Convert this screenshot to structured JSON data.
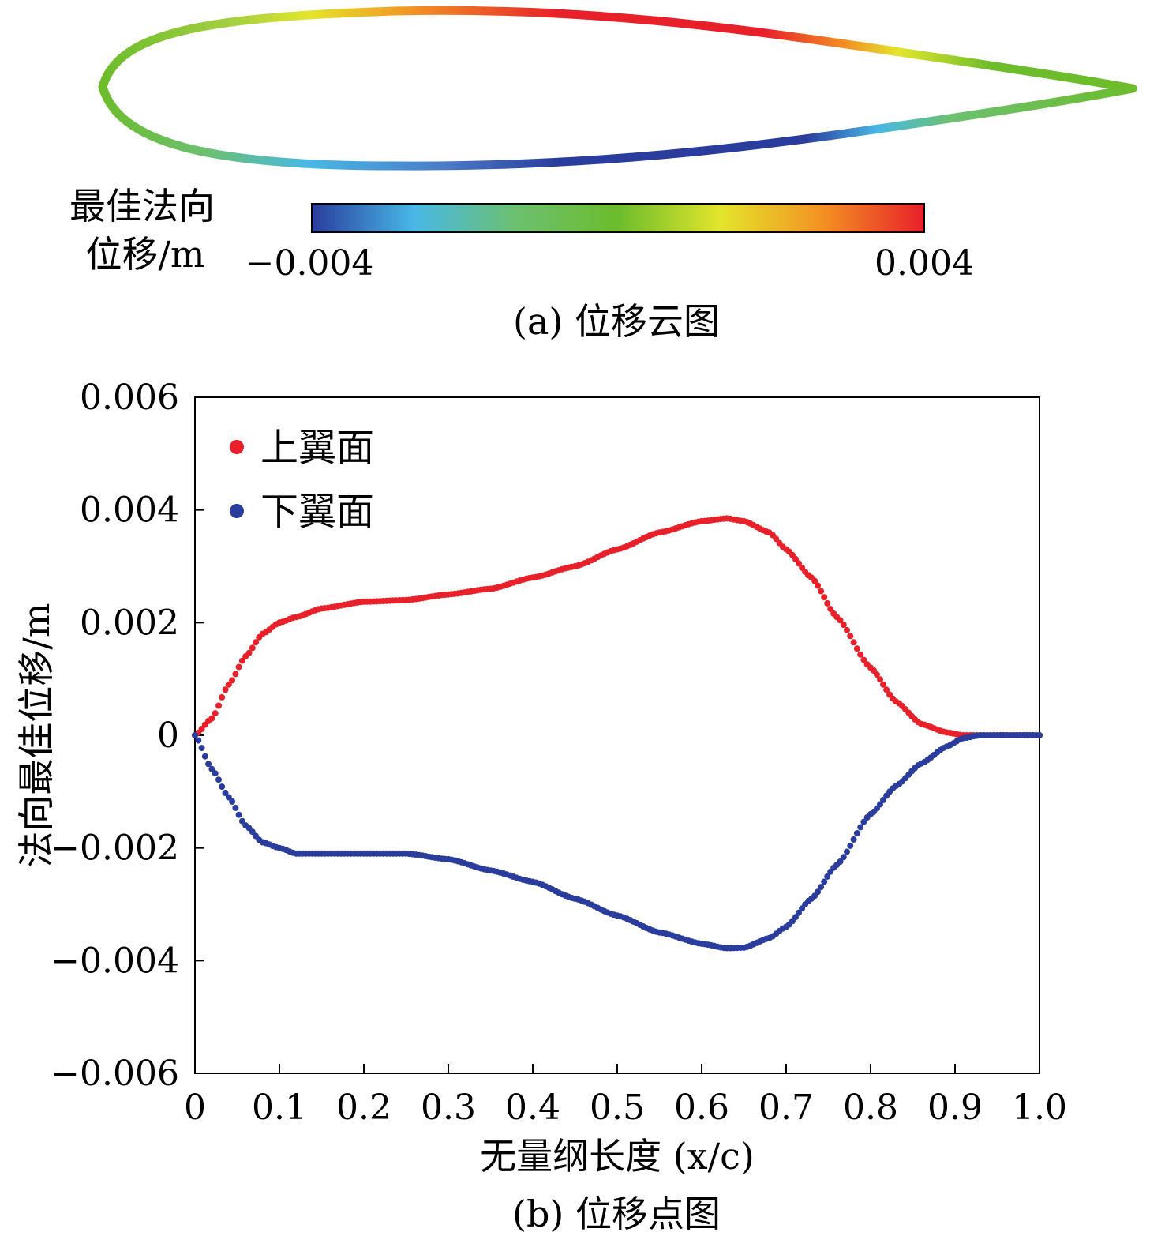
{
  "panel_a": {
    "colorbar_label_line1": "最佳法向",
    "colorbar_label_line2": "位移/m",
    "colorbar_min": "−0.004",
    "colorbar_max": "0.004",
    "colorbar_range": [
      -0.004,
      0.004
    ],
    "colormap": [
      "#2b3d9c",
      "#48b8e6",
      "#6cc070",
      "#6cbc2c",
      "#e3e52c",
      "#f39222",
      "#e8202a"
    ],
    "caption": "(a) 位移云图"
  },
  "panel_b": {
    "caption": "(b) 位移点图"
  },
  "chart_data": {
    "type": "scatter",
    "title": "",
    "xlabel": "无量纲长度 (x/c)",
    "ylabel": "法向最佳位移/m",
    "xlim": [
      0,
      1.0
    ],
    "ylim": [
      -0.006,
      0.006
    ],
    "xticks": [
      0,
      0.1,
      0.2,
      0.3,
      0.4,
      0.5,
      0.6,
      0.7,
      0.8,
      0.9,
      1.0
    ],
    "xtick_labels": [
      "0",
      "0.1",
      "0.2",
      "0.3",
      "0.4",
      "0.5",
      "0.6",
      "0.7",
      "0.8",
      "0.9",
      "1.0"
    ],
    "yticks": [
      -0.006,
      -0.004,
      -0.002,
      0,
      0.002,
      0.004,
      0.006
    ],
    "ytick_labels": [
      "−0.006",
      "−0.004",
      "−0.002",
      "0",
      "0.002",
      "0.004",
      "0.006"
    ],
    "grid": false,
    "legend_position": "top-left",
    "series": [
      {
        "name": "上翼面",
        "color": "#e8202a",
        "x": [
          0,
          0.02,
          0.04,
          0.06,
          0.08,
          0.1,
          0.12,
          0.15,
          0.2,
          0.25,
          0.3,
          0.35,
          0.4,
          0.45,
          0.5,
          0.55,
          0.6,
          0.63,
          0.65,
          0.68,
          0.7,
          0.73,
          0.76,
          0.8,
          0.83,
          0.86,
          0.89,
          0.91,
          0.93,
          0.95,
          1.0
        ],
        "y": [
          0,
          0.0003,
          0.0009,
          0.0014,
          0.0018,
          0.002,
          0.0021,
          0.00225,
          0.00237,
          0.0024,
          0.0025,
          0.0026,
          0.0028,
          0.003,
          0.0033,
          0.0036,
          0.0038,
          0.00385,
          0.0038,
          0.0036,
          0.0033,
          0.0028,
          0.0021,
          0.0012,
          0.0006,
          0.0002,
          5e-05,
          0,
          0,
          0,
          0
        ]
      },
      {
        "name": "下翼面",
        "color": "#2b3d9c",
        "x": [
          0,
          0.02,
          0.04,
          0.06,
          0.08,
          0.1,
          0.12,
          0.15,
          0.2,
          0.25,
          0.3,
          0.35,
          0.4,
          0.45,
          0.5,
          0.55,
          0.6,
          0.63,
          0.65,
          0.68,
          0.7,
          0.73,
          0.76,
          0.8,
          0.83,
          0.86,
          0.89,
          0.91,
          0.93,
          0.95,
          1.0
        ],
        "y": [
          0,
          -0.0006,
          -0.0011,
          -0.0016,
          -0.0019,
          -0.002,
          -0.0021,
          -0.0021,
          -0.0021,
          -0.0021,
          -0.0022,
          -0.0024,
          -0.0026,
          -0.0029,
          -0.0032,
          -0.0035,
          -0.0037,
          -0.00378,
          -0.00377,
          -0.0036,
          -0.0034,
          -0.0029,
          -0.0023,
          -0.0014,
          -0.0009,
          -0.0005,
          -0.0002,
          -5e-05,
          0,
          0,
          0
        ]
      }
    ]
  }
}
